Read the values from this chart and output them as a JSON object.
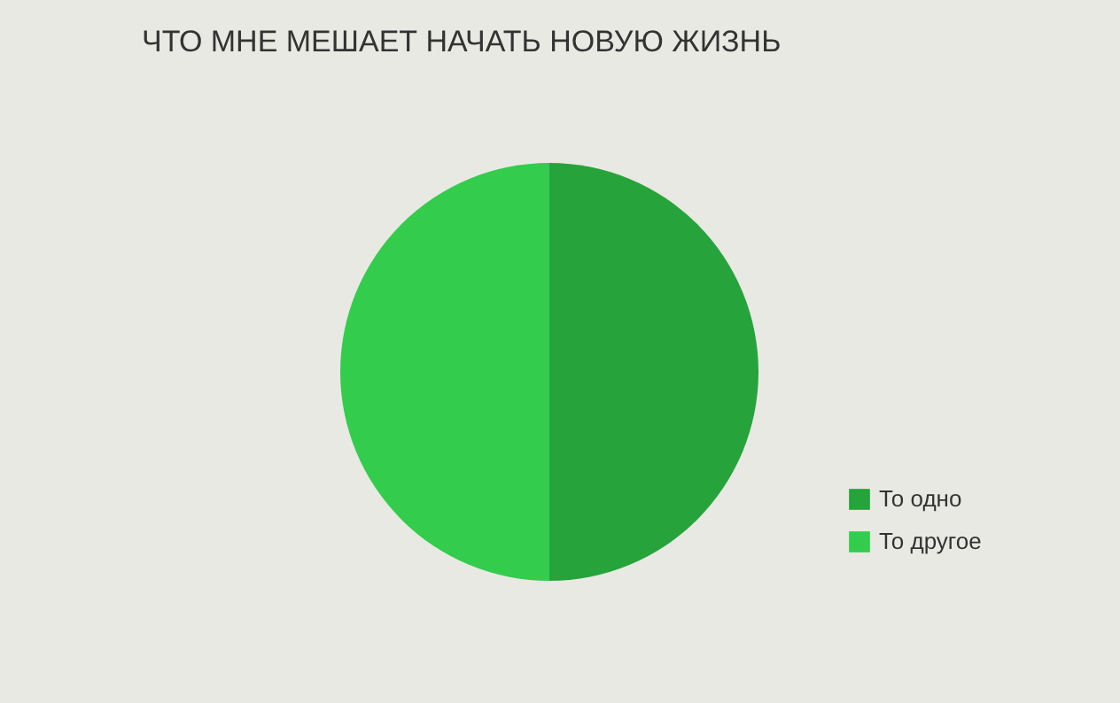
{
  "chart_data": {
    "type": "pie",
    "title": "ЧТО МНЕ МЕШАЕТ НАЧАТЬ НОВУЮ ЖИЗНЬ",
    "categories": [
      "То одно",
      "То другое"
    ],
    "values": [
      50,
      50
    ],
    "colors": [
      "#27a33c",
      "#34cc4c"
    ],
    "legend": "bottom right"
  }
}
